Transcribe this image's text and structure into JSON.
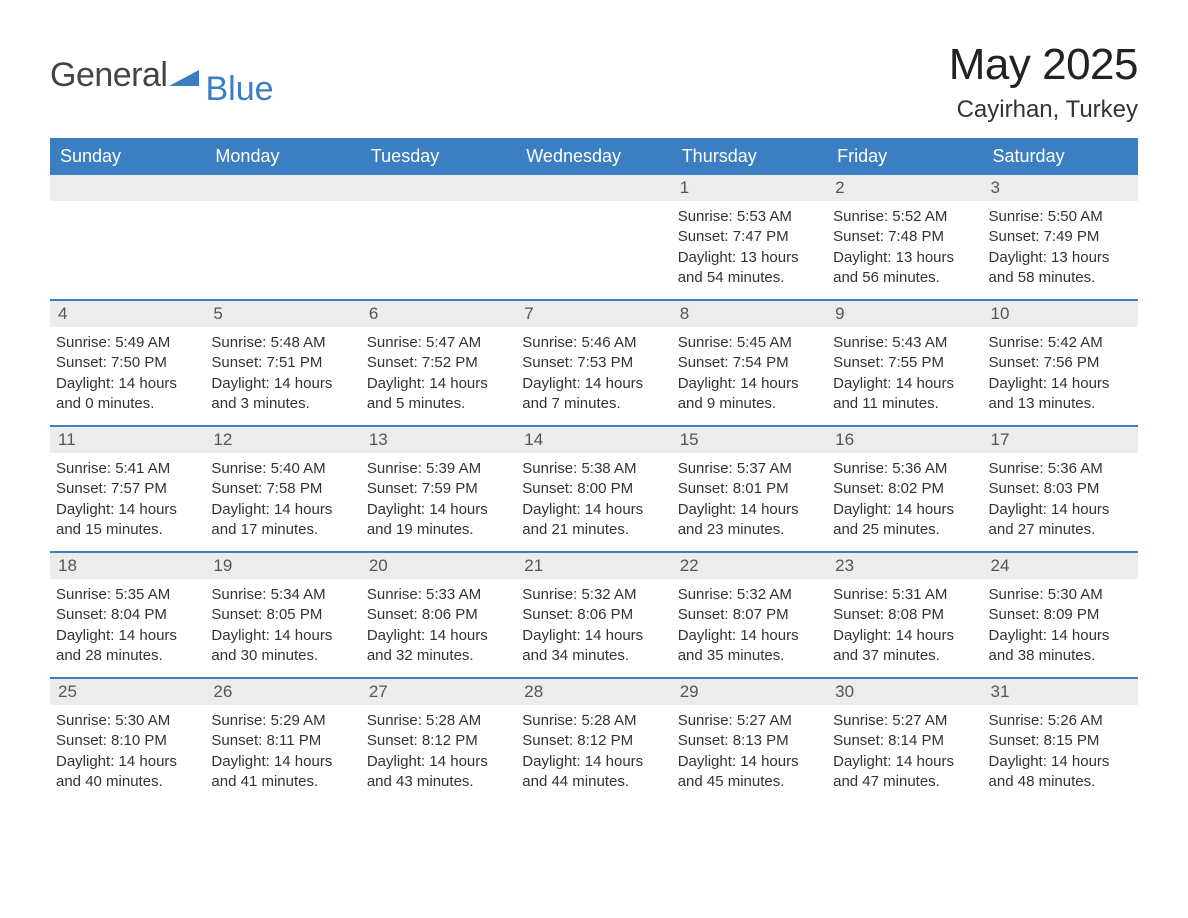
{
  "logo": {
    "text1": "General",
    "text2": "Blue",
    "accent_color": "#3b7ec1"
  },
  "title": "May 2025",
  "location": "Cayirhan, Turkey",
  "colors": {
    "header_bg": "#3b7ec1",
    "header_text": "#ffffff",
    "daynum_bg": "#ececec",
    "daynum_text": "#555555",
    "week_border": "#3b7ec1",
    "body_text": "#333333",
    "page_bg": "#ffffff"
  },
  "typography": {
    "title_fontsize": 44,
    "location_fontsize": 24,
    "dayhead_fontsize": 18,
    "body_fontsize": 15
  },
  "day_headers": [
    "Sunday",
    "Monday",
    "Tuesday",
    "Wednesday",
    "Thursday",
    "Friday",
    "Saturday"
  ],
  "weeks": [
    [
      {
        "n": "",
        "empty": true
      },
      {
        "n": "",
        "empty": true
      },
      {
        "n": "",
        "empty": true
      },
      {
        "n": "",
        "empty": true
      },
      {
        "n": "1",
        "sunrise": "Sunrise: 5:53 AM",
        "sunset": "Sunset: 7:47 PM",
        "daylight": "Daylight: 13 hours and 54 minutes."
      },
      {
        "n": "2",
        "sunrise": "Sunrise: 5:52 AM",
        "sunset": "Sunset: 7:48 PM",
        "daylight": "Daylight: 13 hours and 56 minutes."
      },
      {
        "n": "3",
        "sunrise": "Sunrise: 5:50 AM",
        "sunset": "Sunset: 7:49 PM",
        "daylight": "Daylight: 13 hours and 58 minutes."
      }
    ],
    [
      {
        "n": "4",
        "sunrise": "Sunrise: 5:49 AM",
        "sunset": "Sunset: 7:50 PM",
        "daylight": "Daylight: 14 hours and 0 minutes."
      },
      {
        "n": "5",
        "sunrise": "Sunrise: 5:48 AM",
        "sunset": "Sunset: 7:51 PM",
        "daylight": "Daylight: 14 hours and 3 minutes."
      },
      {
        "n": "6",
        "sunrise": "Sunrise: 5:47 AM",
        "sunset": "Sunset: 7:52 PM",
        "daylight": "Daylight: 14 hours and 5 minutes."
      },
      {
        "n": "7",
        "sunrise": "Sunrise: 5:46 AM",
        "sunset": "Sunset: 7:53 PM",
        "daylight": "Daylight: 14 hours and 7 minutes."
      },
      {
        "n": "8",
        "sunrise": "Sunrise: 5:45 AM",
        "sunset": "Sunset: 7:54 PM",
        "daylight": "Daylight: 14 hours and 9 minutes."
      },
      {
        "n": "9",
        "sunrise": "Sunrise: 5:43 AM",
        "sunset": "Sunset: 7:55 PM",
        "daylight": "Daylight: 14 hours and 11 minutes."
      },
      {
        "n": "10",
        "sunrise": "Sunrise: 5:42 AM",
        "sunset": "Sunset: 7:56 PM",
        "daylight": "Daylight: 14 hours and 13 minutes."
      }
    ],
    [
      {
        "n": "11",
        "sunrise": "Sunrise: 5:41 AM",
        "sunset": "Sunset: 7:57 PM",
        "daylight": "Daylight: 14 hours and 15 minutes."
      },
      {
        "n": "12",
        "sunrise": "Sunrise: 5:40 AM",
        "sunset": "Sunset: 7:58 PM",
        "daylight": "Daylight: 14 hours and 17 minutes."
      },
      {
        "n": "13",
        "sunrise": "Sunrise: 5:39 AM",
        "sunset": "Sunset: 7:59 PM",
        "daylight": "Daylight: 14 hours and 19 minutes."
      },
      {
        "n": "14",
        "sunrise": "Sunrise: 5:38 AM",
        "sunset": "Sunset: 8:00 PM",
        "daylight": "Daylight: 14 hours and 21 minutes."
      },
      {
        "n": "15",
        "sunrise": "Sunrise: 5:37 AM",
        "sunset": "Sunset: 8:01 PM",
        "daylight": "Daylight: 14 hours and 23 minutes."
      },
      {
        "n": "16",
        "sunrise": "Sunrise: 5:36 AM",
        "sunset": "Sunset: 8:02 PM",
        "daylight": "Daylight: 14 hours and 25 minutes."
      },
      {
        "n": "17",
        "sunrise": "Sunrise: 5:36 AM",
        "sunset": "Sunset: 8:03 PM",
        "daylight": "Daylight: 14 hours and 27 minutes."
      }
    ],
    [
      {
        "n": "18",
        "sunrise": "Sunrise: 5:35 AM",
        "sunset": "Sunset: 8:04 PM",
        "daylight": "Daylight: 14 hours and 28 minutes."
      },
      {
        "n": "19",
        "sunrise": "Sunrise: 5:34 AM",
        "sunset": "Sunset: 8:05 PM",
        "daylight": "Daylight: 14 hours and 30 minutes."
      },
      {
        "n": "20",
        "sunrise": "Sunrise: 5:33 AM",
        "sunset": "Sunset: 8:06 PM",
        "daylight": "Daylight: 14 hours and 32 minutes."
      },
      {
        "n": "21",
        "sunrise": "Sunrise: 5:32 AM",
        "sunset": "Sunset: 8:06 PM",
        "daylight": "Daylight: 14 hours and 34 minutes."
      },
      {
        "n": "22",
        "sunrise": "Sunrise: 5:32 AM",
        "sunset": "Sunset: 8:07 PM",
        "daylight": "Daylight: 14 hours and 35 minutes."
      },
      {
        "n": "23",
        "sunrise": "Sunrise: 5:31 AM",
        "sunset": "Sunset: 8:08 PM",
        "daylight": "Daylight: 14 hours and 37 minutes."
      },
      {
        "n": "24",
        "sunrise": "Sunrise: 5:30 AM",
        "sunset": "Sunset: 8:09 PM",
        "daylight": "Daylight: 14 hours and 38 minutes."
      }
    ],
    [
      {
        "n": "25",
        "sunrise": "Sunrise: 5:30 AM",
        "sunset": "Sunset: 8:10 PM",
        "daylight": "Daylight: 14 hours and 40 minutes."
      },
      {
        "n": "26",
        "sunrise": "Sunrise: 5:29 AM",
        "sunset": "Sunset: 8:11 PM",
        "daylight": "Daylight: 14 hours and 41 minutes."
      },
      {
        "n": "27",
        "sunrise": "Sunrise: 5:28 AM",
        "sunset": "Sunset: 8:12 PM",
        "daylight": "Daylight: 14 hours and 43 minutes."
      },
      {
        "n": "28",
        "sunrise": "Sunrise: 5:28 AM",
        "sunset": "Sunset: 8:12 PM",
        "daylight": "Daylight: 14 hours and 44 minutes."
      },
      {
        "n": "29",
        "sunrise": "Sunrise: 5:27 AM",
        "sunset": "Sunset: 8:13 PM",
        "daylight": "Daylight: 14 hours and 45 minutes."
      },
      {
        "n": "30",
        "sunrise": "Sunrise: 5:27 AM",
        "sunset": "Sunset: 8:14 PM",
        "daylight": "Daylight: 14 hours and 47 minutes."
      },
      {
        "n": "31",
        "sunrise": "Sunrise: 5:26 AM",
        "sunset": "Sunset: 8:15 PM",
        "daylight": "Daylight: 14 hours and 48 minutes."
      }
    ]
  ]
}
